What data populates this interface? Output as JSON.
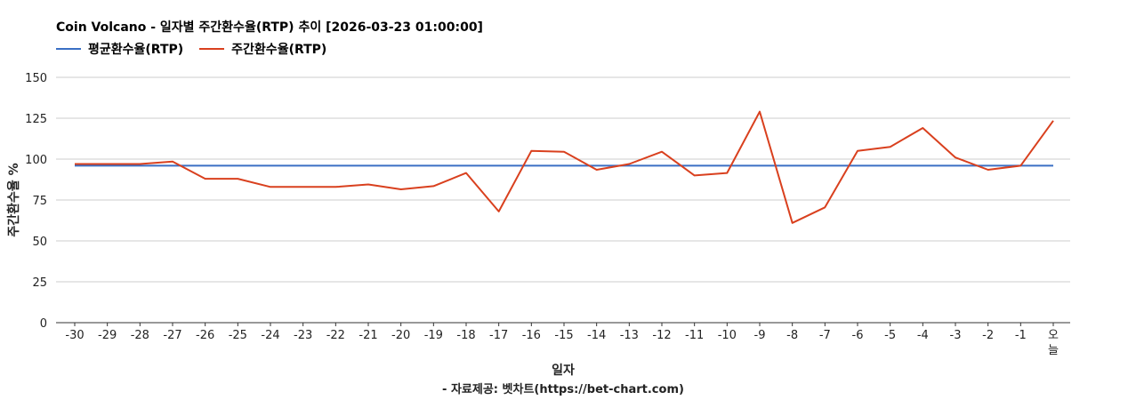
{
  "chart_data": {
    "type": "line",
    "title": "Coin Volcano - 일자별 주간환수율(RTP) 추이 [2026-03-23 01:00:00]",
    "xlabel": "일자",
    "ylabel": "주간환수율 %",
    "source": "- 자료제공: 벳차트(https://bet-chart.com)",
    "categories": [
      "-30",
      "-29",
      "-28",
      "-27",
      "-26",
      "-25",
      "-24",
      "-23",
      "-22",
      "-21",
      "-20",
      "-19",
      "-18",
      "-17",
      "-16",
      "-15",
      "-14",
      "-13",
      "-12",
      "-11",
      "-10",
      "-9",
      "-8",
      "-7",
      "-6",
      "-5",
      "-4",
      "-3",
      "-2",
      "-1",
      "오늘"
    ],
    "ylim": [
      0,
      150
    ],
    "yticks": [
      0,
      25,
      50,
      75,
      100,
      125,
      150
    ],
    "grid": true,
    "legend_position": "top-left",
    "series": [
      {
        "name": "평균환수율(RTP)",
        "color": "#3a6fc4",
        "values": [
          96,
          96,
          96,
          96,
          96,
          96,
          96,
          96,
          96,
          96,
          96,
          96,
          96,
          96,
          96,
          96,
          96,
          96,
          96,
          96,
          96,
          96,
          96,
          96,
          96,
          96,
          96,
          96,
          96,
          96,
          96
        ]
      },
      {
        "name": "주간환수율(RTP)",
        "color": "#d9401e",
        "values": [
          97,
          97,
          97,
          98.5,
          88,
          88,
          83,
          83,
          83,
          84.5,
          81.5,
          83.5,
          91.5,
          68,
          105,
          104.5,
          93.5,
          97,
          104.5,
          90,
          91.5,
          129,
          61,
          70.5,
          105,
          107.5,
          119,
          101,
          93.5,
          96,
          123.5
        ]
      }
    ]
  }
}
